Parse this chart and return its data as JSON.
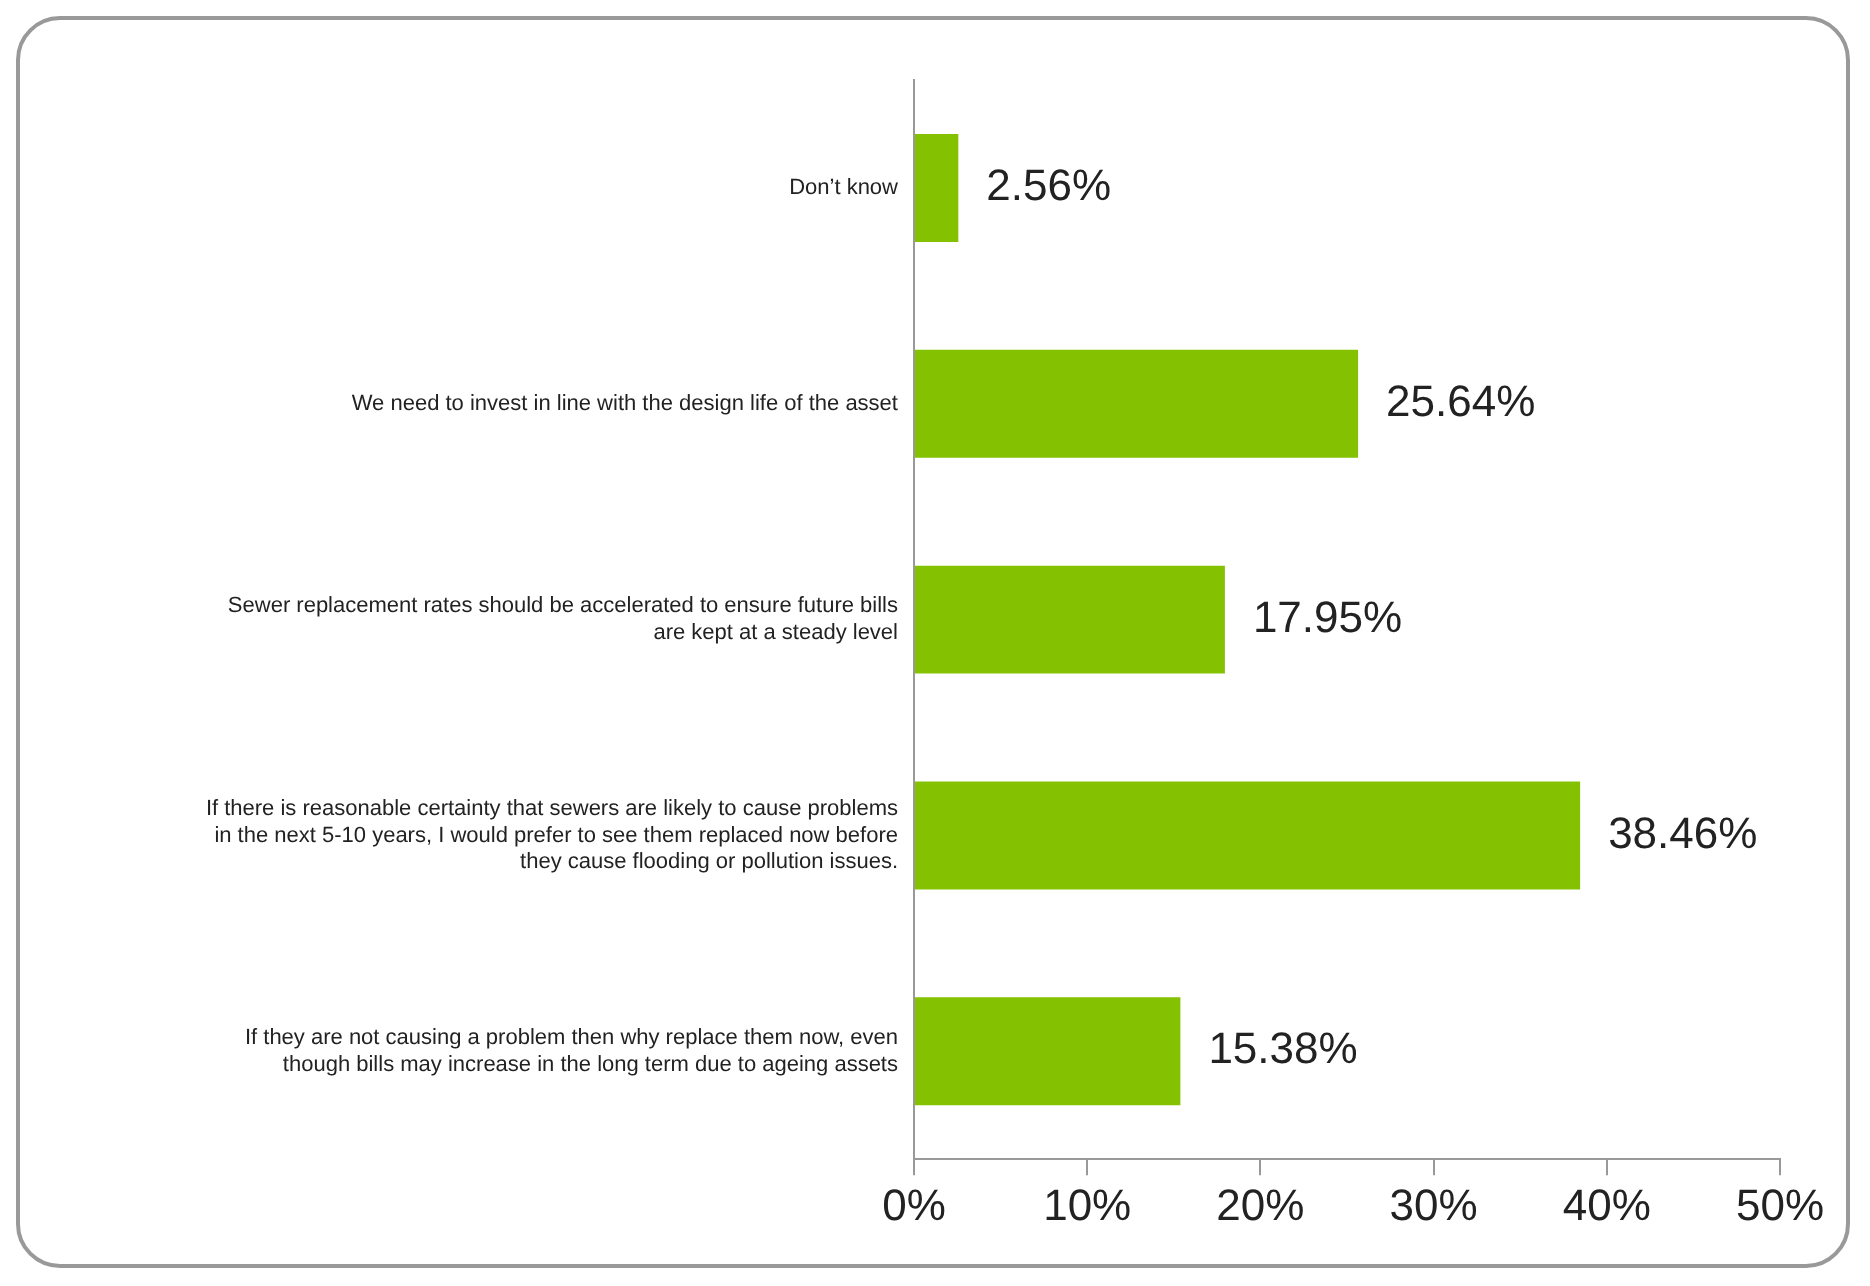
{
  "chart_data": {
    "type": "bar",
    "orientation": "horizontal",
    "categories": [
      "Don’t know",
      "We need to invest in line with the design life of the asset",
      "Sewer replacement rates should be accelerated to ensure future bills are kept at a steady level",
      "If there is reasonable certainty that sewers are likely to cause problems in the next 5-10 years, I would prefer to see them replaced now before they cause flooding or pollution issues.",
      "If they are not causing a problem then why replace them now, even though bills may increase in the long term due to ageing assets"
    ],
    "values": [
      2.56,
      25.64,
      17.95,
      38.46,
      15.38
    ],
    "value_labels": [
      "2.56%",
      "25.64%",
      "17.95%",
      "38.46%",
      "15.38%"
    ],
    "color": "#84c100",
    "xlim": [
      0,
      50
    ],
    "xticks": [
      {
        "value": 0,
        "label": "0%"
      },
      {
        "value": 10,
        "label": "10%"
      },
      {
        "value": 20,
        "label": "20%"
      },
      {
        "value": 30,
        "label": "30%"
      },
      {
        "value": 40,
        "label": "40%"
      },
      {
        "value": 50,
        "label": "50%"
      }
    ],
    "grid": false,
    "legend": false
  }
}
